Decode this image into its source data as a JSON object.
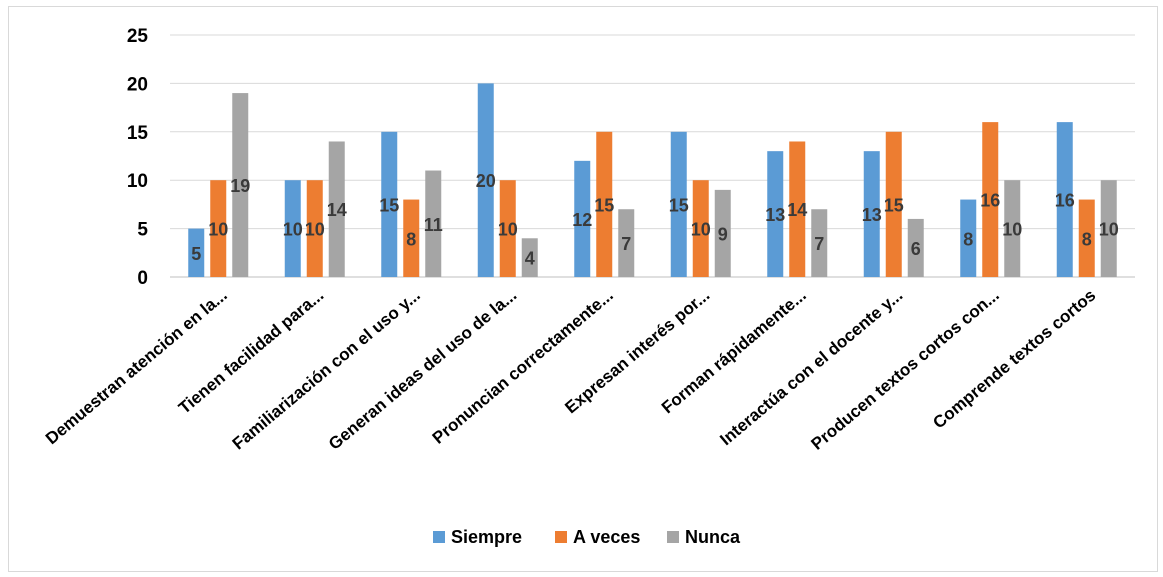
{
  "chart_data": {
    "type": "bar",
    "categories": [
      "Demuestran atención en la...",
      "Tienen facilidad para...",
      "Familiarización con el uso y...",
      "Generan ideas del uso de la...",
      "Pronuncian correctamente...",
      "Expresan interés por...",
      "Forman rápidamente...",
      "Interactúa con el docente y...",
      "Producen textos cortos con...",
      "Comprende textos cortos"
    ],
    "series": [
      {
        "name": "Siempre",
        "color": "#5b9bd5",
        "values": [
          5,
          10,
          15,
          20,
          12,
          15,
          13,
          13,
          8,
          16
        ]
      },
      {
        "name": "A veces",
        "color": "#ed7d31",
        "values": [
          10,
          10,
          8,
          10,
          15,
          10,
          14,
          15,
          16,
          8
        ]
      },
      {
        "name": "Nunca",
        "color": "#a5a5a5",
        "values": [
          19,
          14,
          11,
          4,
          7,
          9,
          7,
          6,
          10,
          10
        ]
      }
    ],
    "yticks": [
      "0",
      "5",
      "10",
      "15",
      "20",
      "25"
    ],
    "ylim": [
      0,
      25
    ],
    "grid": true,
    "legend_position": "bottom",
    "data_labels": true
  }
}
